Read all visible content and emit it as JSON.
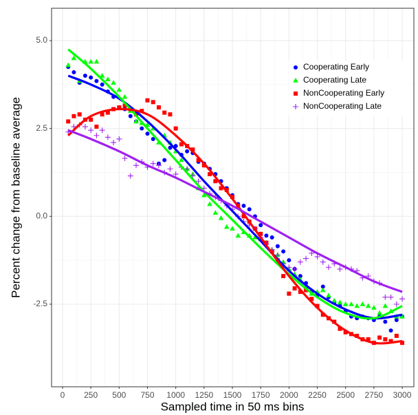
{
  "chart_data": {
    "type": "scatter",
    "xlabel": "Sampled time in 50 ms bins",
    "ylabel": "Percent change from baseline average",
    "xlim": [
      -97,
      3103
    ],
    "ylim": [
      -4.85,
      5.92
    ],
    "xticks": [
      0,
      250,
      500,
      750,
      1000,
      1250,
      1500,
      1750,
      2000,
      2250,
      2500,
      2750,
      3000
    ],
    "yticks": [
      {
        "value": 5,
        "label": "5.0"
      },
      2.5,
      {
        "value": 0,
        "label": "0.0"
      },
      -2.5
    ],
    "grid": true,
    "legend": "top-right",
    "x": [
      50,
      100,
      150,
      200,
      250,
      300,
      350,
      400,
      450,
      500,
      550,
      600,
      650,
      700,
      750,
      800,
      850,
      900,
      950,
      1000,
      1050,
      1100,
      1150,
      1200,
      1250,
      1300,
      1350,
      1400,
      1450,
      1500,
      1550,
      1600,
      1650,
      1700,
      1750,
      1800,
      1850,
      1900,
      1950,
      2000,
      2050,
      2100,
      2150,
      2200,
      2250,
      2300,
      2350,
      2400,
      2450,
      2500,
      2550,
      2600,
      2650,
      2700,
      2750,
      2800,
      2850,
      2900,
      2950,
      3000
    ],
    "fit_x": [
      50,
      250,
      500,
      750,
      1000,
      1250,
      1500,
      1750,
      2000,
      2250,
      2500,
      2750,
      3000
    ],
    "series": [
      {
        "name": "Cooperating Early",
        "color": "#0000ff",
        "shape": "circle",
        "values": [
          4.25,
          4.1,
          3.8,
          4.0,
          3.95,
          3.85,
          3.75,
          3.55,
          3.4,
          3.1,
          3.05,
          2.85,
          2.7,
          2.5,
          2.35,
          2.2,
          1.5,
          1.6,
          1.95,
          2.0,
          1.75,
          1.85,
          1.8,
          1.55,
          1.5,
          1.35,
          1.2,
          1.0,
          0.8,
          0.6,
          0.35,
          0.3,
          0.2,
          0.0,
          -0.25,
          -0.55,
          -0.6,
          -0.85,
          -1.0,
          -1.25,
          -1.5,
          -1.7,
          -1.9,
          -2.15,
          -2.25,
          -2.0,
          -2.3,
          -2.45,
          -2.55,
          -2.7,
          -2.85,
          -2.9,
          -2.85,
          -2.9,
          -2.95,
          -2.85,
          -3.0,
          -3.25,
          -2.95,
          -2.85
        ],
        "fit": [
          4.0,
          3.75,
          3.35,
          2.7,
          1.9,
          1.0,
          0.15,
          -0.7,
          -1.55,
          -2.2,
          -2.65,
          -2.9,
          -2.8
        ]
      },
      {
        "name": "Cooperating Late",
        "color": "#00ff00",
        "shape": "triangle",
        "values": [
          4.3,
          4.5,
          3.85,
          4.4,
          4.4,
          4.4,
          4.0,
          3.9,
          3.8,
          3.6,
          3.4,
          3.0,
          2.7,
          2.65,
          2.6,
          2.5,
          2.1,
          2.3,
          2.1,
          1.85,
          1.6,
          1.35,
          1.2,
          0.8,
          0.6,
          0.35,
          0.1,
          -0.05,
          -0.3,
          -0.35,
          -0.55,
          -0.45,
          -0.55,
          -0.6,
          -0.65,
          -0.75,
          -0.95,
          -1.1,
          -1.3,
          -1.5,
          -1.65,
          -1.8,
          -2.0,
          -2.2,
          -2.15,
          -2.1,
          -2.25,
          -2.4,
          -2.45,
          -2.5,
          -2.5,
          -2.55,
          -2.5,
          -2.55,
          -2.6,
          -2.75,
          -2.55,
          -2.7,
          -2.85,
          -2.85
        ],
        "fit": [
          4.75,
          4.2,
          3.4,
          2.5,
          1.6,
          0.7,
          -0.1,
          -0.9,
          -1.65,
          -2.3,
          -2.75,
          -2.9,
          -2.55
        ]
      },
      {
        "name": "NonCooperating Early",
        "color": "#ff0000",
        "shape": "square",
        "values": [
          2.7,
          2.85,
          2.9,
          2.75,
          2.75,
          2.55,
          2.9,
          2.95,
          3.05,
          3.1,
          3.15,
          3.05,
          2.9,
          3.0,
          3.3,
          3.25,
          3.1,
          2.95,
          2.9,
          2.5,
          2.05,
          2.0,
          1.9,
          1.6,
          1.45,
          1.2,
          1.0,
          0.8,
          0.75,
          0.55,
          0.3,
          0.0,
          -0.15,
          -0.35,
          -0.5,
          -0.75,
          -1.0,
          -1.25,
          -1.7,
          -2.2,
          -2.05,
          -2.15,
          -2.1,
          -2.35,
          -2.55,
          -2.8,
          -2.9,
          -3.0,
          -3.2,
          -3.3,
          -3.35,
          -3.4,
          -3.5,
          -3.5,
          -3.6,
          -3.45,
          -3.5,
          -3.55,
          -3.4,
          -3.6
        ],
        "fit": [
          2.3,
          2.85,
          3.05,
          2.9,
          2.3,
          1.5,
          0.5,
          -0.6,
          -1.7,
          -2.6,
          -3.25,
          -3.6,
          -3.55
        ]
      },
      {
        "name": "NonCooperating Late",
        "color": "#a020f0",
        "shape": "plus",
        "values": [
          2.4,
          2.55,
          2.6,
          2.55,
          2.45,
          2.3,
          2.45,
          2.25,
          2.1,
          2.2,
          1.65,
          1.15,
          1.45,
          1.55,
          1.4,
          1.5,
          1.45,
          1.25,
          1.35,
          1.2,
          1.4,
          1.35,
          1.15,
          1.0,
          0.8,
          0.65,
          0.55,
          0.45,
          0.3,
          0.2,
          0.0,
          -0.15,
          -0.25,
          -0.35,
          -0.6,
          -0.8,
          -0.95,
          -1.1,
          -1.35,
          -1.45,
          -1.5,
          -1.3,
          -1.2,
          -1.05,
          -1.15,
          -1.3,
          -1.45,
          -1.35,
          -1.5,
          -1.45,
          -1.5,
          -1.55,
          -1.75,
          -1.7,
          -1.85,
          -1.9,
          -2.3,
          -2.3,
          -2.5,
          -2.35
        ],
        "fit": [
          2.45,
          2.2,
          1.85,
          1.45,
          1.1,
          0.7,
          0.3,
          -0.15,
          -0.6,
          -1.05,
          -1.45,
          -1.85,
          -2.15
        ]
      }
    ]
  }
}
